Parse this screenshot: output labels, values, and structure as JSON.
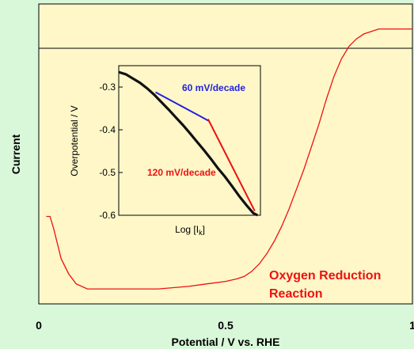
{
  "chart_data": [
    {
      "type": "line",
      "xlabel": "Potential / V vs. RHE",
      "ylabel": "Current",
      "xlim": [
        0,
        1
      ],
      "x_ticks": [
        {
          "value": 0,
          "label": "0"
        },
        {
          "value": 0.5,
          "label": "0.5"
        },
        {
          "value": 1,
          "label": "1"
        }
      ],
      "zero_line": true,
      "annotation": "Oxygen Reduction Reaction",
      "annotation_lines": [
        "Oxygen Reduction",
        "Reaction"
      ],
      "colors": {
        "background": "#d9f7d9",
        "plot_background": "#fff7c8",
        "curve": "#ee1111",
        "annotation": "#ee1111"
      },
      "series": [
        {
          "x": [
            0.02,
            0.03,
            0.04,
            0.05,
            0.06,
            0.08,
            0.1,
            0.13,
            0.18,
            0.25,
            0.32,
            0.4,
            0.45,
            0.5,
            0.53,
            0.55,
            0.57,
            0.59,
            0.61,
            0.63,
            0.65,
            0.67,
            0.69,
            0.71,
            0.73,
            0.75,
            0.77,
            0.79,
            0.81,
            0.83,
            0.85,
            0.87,
            0.89,
            0.91,
            0.95,
            1.0
          ],
          "y": [
            -0.75,
            -0.75,
            -0.8,
            -0.86,
            -0.92,
            -0.98,
            -1.02,
            -1.04,
            -1.04,
            -1.04,
            -1.04,
            -1.03,
            -1.02,
            -1.01,
            -1.0,
            -0.99,
            -0.97,
            -0.94,
            -0.9,
            -0.85,
            -0.79,
            -0.72,
            -0.64,
            -0.56,
            -0.47,
            -0.38,
            -0.28,
            -0.19,
            -0.12,
            -0.07,
            -0.04,
            -0.02,
            -0.01,
            0.0,
            0.0,
            0.0
          ],
          "ylim": [
            -1.1,
            0.1
          ]
        }
      ]
    },
    {
      "type": "line",
      "inset": true,
      "xlabel": "Log [I",
      "xlabel_sub": "k",
      "xlabel_end": "]",
      "ylabel": "Overpotential / V",
      "xlim": [
        0,
        1
      ],
      "ylim": [
        -0.6,
        -0.25
      ],
      "y_ticks": [
        {
          "value": -0.3,
          "label": "-0.3"
        },
        {
          "value": -0.4,
          "label": "-0.4"
        },
        {
          "value": -0.5,
          "label": "-0.5"
        },
        {
          "value": -0.6,
          "label": "-0.6"
        }
      ],
      "colors": {
        "data": "#111111",
        "fit_60": "#2222dd",
        "fit_120": "#ee1111",
        "plot_background": "#fff7c8"
      },
      "series": [
        {
          "x": [
            0.0,
            0.05,
            0.1,
            0.15,
            0.2,
            0.25,
            0.3,
            0.35,
            0.4,
            0.45,
            0.5,
            0.55,
            0.6,
            0.65,
            0.7,
            0.75,
            0.8,
            0.85,
            0.9,
            0.95,
            0.98
          ],
          "y": [
            -0.265,
            -0.27,
            -0.28,
            -0.29,
            -0.303,
            -0.318,
            -0.335,
            -0.352,
            -0.37,
            -0.388,
            -0.407,
            -0.427,
            -0.447,
            -0.468,
            -0.49,
            -0.51,
            -0.532,
            -0.555,
            -0.576,
            -0.595,
            -0.6
          ]
        }
      ],
      "fits": [
        {
          "label": "60 mV/decade",
          "x": [
            0.26,
            0.64
          ],
          "y": [
            -0.312,
            -0.38
          ]
        },
        {
          "label": "120 mV/decade",
          "x": [
            0.63,
            0.96
          ],
          "y": [
            -0.375,
            -0.59
          ]
        }
      ]
    }
  ]
}
